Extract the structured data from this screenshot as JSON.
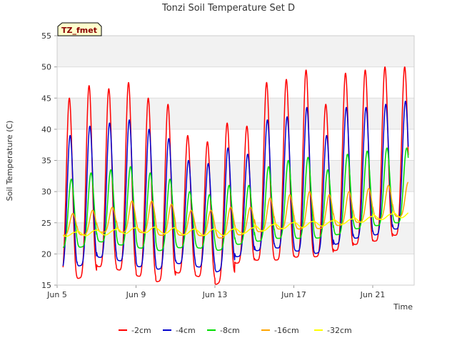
{
  "chart_data": {
    "type": "line",
    "title": "Tonzi Soil Temperature Set D",
    "xlabel": "Time",
    "ylabel": "Soil Temperature (C)",
    "badge": "TZ_fmet",
    "ylim": [
      15,
      55
    ],
    "yticks": [
      15,
      20,
      25,
      30,
      35,
      40,
      45,
      50,
      55
    ],
    "xlim": [
      5,
      23.1
    ],
    "xticks": [
      {
        "value": 5,
        "label": "Jun 5"
      },
      {
        "value": 9,
        "label": "Jun 9"
      },
      {
        "value": 13,
        "label": "Jun 13"
      },
      {
        "value": 17,
        "label": "Jun 17"
      },
      {
        "value": 21,
        "label": "Jun 21"
      }
    ],
    "grid": true,
    "legend_position": "bottom",
    "series": [
      {
        "name": "-2cm",
        "color": "#ff0000",
        "start": 5.3,
        "end": 22.8,
        "peak_phase": 0.62,
        "daily_max": [
          45,
          47,
          46.5,
          47.5,
          45,
          44,
          39,
          38,
          41,
          40.5,
          47.5,
          48,
          49.5,
          44,
          49,
          49.5,
          50,
          50
        ],
        "daily_min": [
          16,
          16,
          18,
          17.5,
          16.5,
          15.5,
          17,
          16.5,
          15,
          18.5,
          19,
          19,
          19.5,
          19.5,
          20.5,
          21.5,
          22,
          23
        ]
      },
      {
        "name": "-4cm",
        "color": "#0000cc",
        "start": 5.3,
        "end": 22.8,
        "peak_phase": 0.66,
        "daily_max": [
          39,
          40.5,
          41,
          41.5,
          40,
          38.5,
          35,
          34.5,
          37,
          36,
          41.5,
          42,
          43.5,
          39,
          43.5,
          43.5,
          44,
          44.5
        ],
        "daily_min": [
          17.5,
          18,
          19.5,
          19,
          18,
          17.5,
          18.5,
          18,
          17,
          19.5,
          20.5,
          21,
          20.5,
          20,
          21.5,
          22.5,
          23,
          24
        ]
      },
      {
        "name": "-8cm",
        "color": "#00dd00",
        "start": 5.3,
        "end": 22.8,
        "peak_phase": 0.72,
        "daily_max": [
          32,
          33,
          33.5,
          34,
          33,
          32,
          30,
          29.5,
          31,
          31,
          34,
          35,
          35.5,
          33.5,
          36,
          36.5,
          37,
          37
        ],
        "daily_min": [
          21,
          21,
          22,
          21.5,
          21,
          20.5,
          21,
          21,
          20.5,
          21.5,
          22,
          22.5,
          22.5,
          22.5,
          23,
          24,
          24.5,
          25
        ]
      },
      {
        "name": "-16cm",
        "color": "#ffa500",
        "start": 5.3,
        "end": 22.8,
        "peak_phase": 0.8,
        "daily_max": [
          26.5,
          27,
          27.5,
          28.5,
          28.5,
          28,
          27,
          27,
          27.5,
          27.5,
          29,
          29.5,
          30,
          29.5,
          30,
          30.5,
          31,
          31.5
        ],
        "daily_min": [
          23,
          23,
          23.5,
          23.5,
          23.5,
          23,
          23,
          23,
          22.5,
          23,
          23.5,
          24,
          24,
          24,
          24.5,
          25,
          25.5,
          26
        ]
      },
      {
        "name": "-32cm",
        "color": "#ffff00",
        "start": 5.3,
        "end": 22.8,
        "peak_phase": 0.95,
        "daily_max": [
          23.5,
          23.8,
          23.9,
          24.2,
          24.3,
          24.2,
          24,
          24,
          24,
          24.2,
          24.7,
          25,
          25.2,
          25.3,
          25.6,
          26,
          26.4,
          26.8
        ],
        "daily_min": [
          22.8,
          22.9,
          23,
          23.2,
          23.4,
          23.3,
          23.1,
          23,
          22.9,
          23.2,
          23.6,
          24,
          24.2,
          24.4,
          24.7,
          25,
          25.4,
          25.8
        ]
      }
    ]
  }
}
